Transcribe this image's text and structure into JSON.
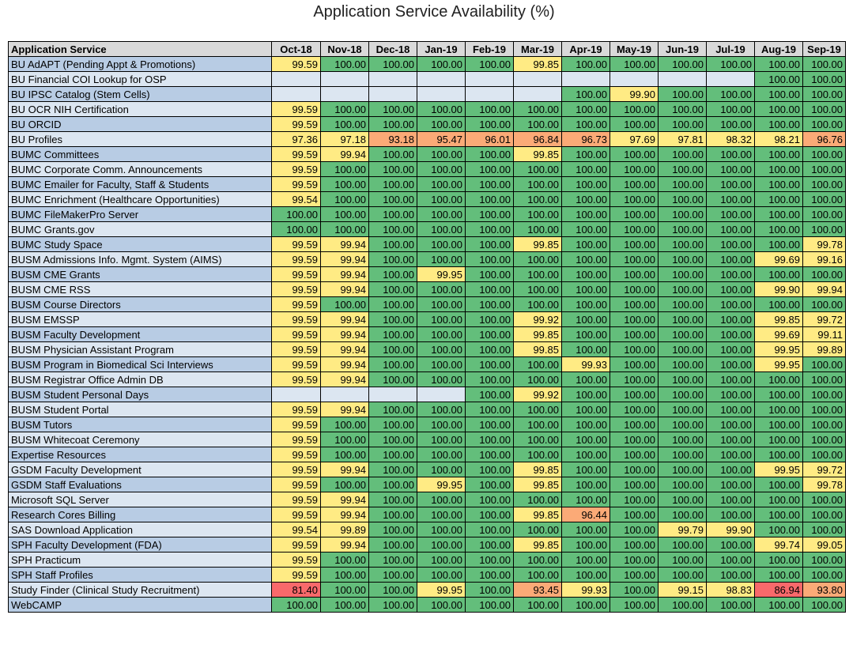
{
  "title": "Application Service Availability (%)",
  "colors": {
    "green": "#63be7b",
    "yellow": "#ffeb84",
    "orange": "#fbaa77",
    "red": "#f8696b",
    "empty": "#dce6f1",
    "name_alt": "#b8cce4",
    "name_plain": "#dce6f1",
    "header": "#d9d9d9"
  },
  "chart_data": {
    "type": "heatmap",
    "title": "Application Service Availability (%)",
    "row_header": "Application Service",
    "columns": [
      "Oct-18",
      "Nov-18",
      "Dec-18",
      "Jan-19",
      "Feb-19",
      "Mar-19",
      "Apr-19",
      "May-19",
      "Jun-19",
      "Jul-19",
      "Aug-19",
      "Sep-19"
    ],
    "rows": [
      {
        "name": "BU AdAPT (Pending Appt & Promotions)",
        "values": [
          "99.59",
          "100.00",
          "100.00",
          "100.00",
          "100.00",
          "99.85",
          "100.00",
          "100.00",
          "100.00",
          "100.00",
          "100.00",
          "100.00"
        ]
      },
      {
        "name": "BU Financial COI Lookup for OSP",
        "values": [
          "",
          "",
          "",
          "",
          "",
          "",
          "",
          "",
          "",
          "",
          "100.00",
          "100.00"
        ]
      },
      {
        "name": "BU IPSC Catalog (Stem Cells)",
        "values": [
          "",
          "",
          "",
          "",
          "",
          "",
          "100.00",
          "99.90",
          "100.00",
          "100.00",
          "100.00",
          "100.00"
        ]
      },
      {
        "name": "BU OCR NIH Certification",
        "values": [
          "99.59",
          "100.00",
          "100.00",
          "100.00",
          "100.00",
          "100.00",
          "100.00",
          "100.00",
          "100.00",
          "100.00",
          "100.00",
          "100.00"
        ]
      },
      {
        "name": "BU ORCID",
        "values": [
          "99.59",
          "100.00",
          "100.00",
          "100.00",
          "100.00",
          "100.00",
          "100.00",
          "100.00",
          "100.00",
          "100.00",
          "100.00",
          "100.00"
        ]
      },
      {
        "name": "BU Profiles",
        "values": [
          "97.36",
          "97.18",
          "93.18",
          "95.47",
          "96.01",
          "96.84",
          "96.73",
          "97.69",
          "97.81",
          "98.32",
          "98.21",
          "96.76"
        ]
      },
      {
        "name": "BUMC Committees",
        "values": [
          "99.59",
          "99.94",
          "100.00",
          "100.00",
          "100.00",
          "99.85",
          "100.00",
          "100.00",
          "100.00",
          "100.00",
          "100.00",
          "100.00"
        ]
      },
      {
        "name": "BUMC Corporate Comm. Announcements",
        "values": [
          "99.59",
          "100.00",
          "100.00",
          "100.00",
          "100.00",
          "100.00",
          "100.00",
          "100.00",
          "100.00",
          "100.00",
          "100.00",
          "100.00"
        ]
      },
      {
        "name": "BUMC Emailer for Faculty, Staff & Students",
        "values": [
          "99.59",
          "100.00",
          "100.00",
          "100.00",
          "100.00",
          "100.00",
          "100.00",
          "100.00",
          "100.00",
          "100.00",
          "100.00",
          "100.00"
        ]
      },
      {
        "name": "BUMC Enrichment (Healthcare Opportunities)",
        "values": [
          "99.54",
          "100.00",
          "100.00",
          "100.00",
          "100.00",
          "100.00",
          "100.00",
          "100.00",
          "100.00",
          "100.00",
          "100.00",
          "100.00"
        ]
      },
      {
        "name": "BUMC FileMakerPro Server",
        "values": [
          "100.00",
          "100.00",
          "100.00",
          "100.00",
          "100.00",
          "100.00",
          "100.00",
          "100.00",
          "100.00",
          "100.00",
          "100.00",
          "100.00"
        ]
      },
      {
        "name": "BUMC Grants.gov",
        "values": [
          "100.00",
          "100.00",
          "100.00",
          "100.00",
          "100.00",
          "100.00",
          "100.00",
          "100.00",
          "100.00",
          "100.00",
          "100.00",
          "100.00"
        ]
      },
      {
        "name": "BUMC Study Space",
        "values": [
          "99.59",
          "99.94",
          "100.00",
          "100.00",
          "100.00",
          "99.85",
          "100.00",
          "100.00",
          "100.00",
          "100.00",
          "100.00",
          "99.78"
        ]
      },
      {
        "name": "BUSM Admissions Info. Mgmt. System (AIMS)",
        "values": [
          "99.59",
          "99.94",
          "100.00",
          "100.00",
          "100.00",
          "100.00",
          "100.00",
          "100.00",
          "100.00",
          "100.00",
          "99.69",
          "99.16"
        ]
      },
      {
        "name": "BUSM CME Grants",
        "values": [
          "99.59",
          "99.94",
          "100.00",
          "99.95",
          "100.00",
          "100.00",
          "100.00",
          "100.00",
          "100.00",
          "100.00",
          "100.00",
          "100.00"
        ]
      },
      {
        "name": "BUSM CME RSS",
        "values": [
          "99.59",
          "99.94",
          "100.00",
          "100.00",
          "100.00",
          "100.00",
          "100.00",
          "100.00",
          "100.00",
          "100.00",
          "99.90",
          "99.94"
        ]
      },
      {
        "name": "BUSM Course Directors",
        "values": [
          "99.59",
          "100.00",
          "100.00",
          "100.00",
          "100.00",
          "100.00",
          "100.00",
          "100.00",
          "100.00",
          "100.00",
          "100.00",
          "100.00"
        ]
      },
      {
        "name": "BUSM EMSSP",
        "values": [
          "99.59",
          "99.94",
          "100.00",
          "100.00",
          "100.00",
          "99.92",
          "100.00",
          "100.00",
          "100.00",
          "100.00",
          "99.85",
          "99.72"
        ]
      },
      {
        "name": "BUSM Faculty Development",
        "values": [
          "99.59",
          "99.94",
          "100.00",
          "100.00",
          "100.00",
          "99.85",
          "100.00",
          "100.00",
          "100.00",
          "100.00",
          "99.69",
          "99.11"
        ]
      },
      {
        "name": "BUSM Physician Assistant Program",
        "values": [
          "99.59",
          "99.94",
          "100.00",
          "100.00",
          "100.00",
          "99.85",
          "100.00",
          "100.00",
          "100.00",
          "100.00",
          "99.95",
          "99.89"
        ]
      },
      {
        "name": "BUSM Program in Biomedical Sci Interviews",
        "values": [
          "99.59",
          "99.94",
          "100.00",
          "100.00",
          "100.00",
          "100.00",
          "99.93",
          "100.00",
          "100.00",
          "100.00",
          "99.95",
          "100.00"
        ]
      },
      {
        "name": "BUSM Registrar Office Admin DB",
        "values": [
          "99.59",
          "99.94",
          "100.00",
          "100.00",
          "100.00",
          "100.00",
          "100.00",
          "100.00",
          "100.00",
          "100.00",
          "100.00",
          "100.00"
        ]
      },
      {
        "name": "BUSM Student Personal Days",
        "values": [
          "",
          "",
          "",
          "",
          "100.00",
          "99.92",
          "100.00",
          "100.00",
          "100.00",
          "100.00",
          "100.00",
          "100.00"
        ]
      },
      {
        "name": "BUSM Student Portal",
        "values": [
          "99.59",
          "99.94",
          "100.00",
          "100.00",
          "100.00",
          "100.00",
          "100.00",
          "100.00",
          "100.00",
          "100.00",
          "100.00",
          "100.00"
        ]
      },
      {
        "name": "BUSM Tutors",
        "values": [
          "99.59",
          "100.00",
          "100.00",
          "100.00",
          "100.00",
          "100.00",
          "100.00",
          "100.00",
          "100.00",
          "100.00",
          "100.00",
          "100.00"
        ]
      },
      {
        "name": "BUSM Whitecoat Ceremony",
        "values": [
          "99.59",
          "100.00",
          "100.00",
          "100.00",
          "100.00",
          "100.00",
          "100.00",
          "100.00",
          "100.00",
          "100.00",
          "100.00",
          "100.00"
        ]
      },
      {
        "name": "Expertise Resources",
        "values": [
          "99.59",
          "100.00",
          "100.00",
          "100.00",
          "100.00",
          "100.00",
          "100.00",
          "100.00",
          "100.00",
          "100.00",
          "100.00",
          "100.00"
        ]
      },
      {
        "name": "GSDM Faculty Development",
        "values": [
          "99.59",
          "99.94",
          "100.00",
          "100.00",
          "100.00",
          "99.85",
          "100.00",
          "100.00",
          "100.00",
          "100.00",
          "99.95",
          "99.72"
        ]
      },
      {
        "name": "GSDM Staff Evaluations",
        "values": [
          "99.59",
          "100.00",
          "100.00",
          "99.95",
          "100.00",
          "99.85",
          "100.00",
          "100.00",
          "100.00",
          "100.00",
          "100.00",
          "99.78"
        ]
      },
      {
        "name": "Microsoft SQL Server",
        "values": [
          "99.59",
          "99.94",
          "100.00",
          "100.00",
          "100.00",
          "100.00",
          "100.00",
          "100.00",
          "100.00",
          "100.00",
          "100.00",
          "100.00"
        ]
      },
      {
        "name": "Research Cores Billing",
        "values": [
          "99.59",
          "99.94",
          "100.00",
          "100.00",
          "100.00",
          "99.85",
          "96.44",
          "100.00",
          "100.00",
          "100.00",
          "100.00",
          "100.00"
        ]
      },
      {
        "name": "SAS Download Application",
        "values": [
          "99.54",
          "99.89",
          "100.00",
          "100.00",
          "100.00",
          "100.00",
          "100.00",
          "100.00",
          "99.79",
          "99.90",
          "100.00",
          "100.00"
        ]
      },
      {
        "name": "SPH Faculty Development (FDA)",
        "values": [
          "99.59",
          "99.94",
          "100.00",
          "100.00",
          "100.00",
          "99.85",
          "100.00",
          "100.00",
          "100.00",
          "100.00",
          "99.74",
          "99.05"
        ]
      },
      {
        "name": "SPH Practicum",
        "values": [
          "99.59",
          "100.00",
          "100.00",
          "100.00",
          "100.00",
          "100.00",
          "100.00",
          "100.00",
          "100.00",
          "100.00",
          "100.00",
          "100.00"
        ]
      },
      {
        "name": "SPH Staff Profiles",
        "values": [
          "99.59",
          "100.00",
          "100.00",
          "100.00",
          "100.00",
          "100.00",
          "100.00",
          "100.00",
          "100.00",
          "100.00",
          "100.00",
          "100.00"
        ]
      },
      {
        "name": "Study Finder (Clinical Study Recruitment)",
        "values": [
          "81.40",
          "100.00",
          "100.00",
          "99.95",
          "100.00",
          "93.45",
          "99.93",
          "100.00",
          "99.15",
          "98.83",
          "86.94",
          "93.80"
        ]
      },
      {
        "name": "WebCAMP",
        "values": [
          "100.00",
          "100.00",
          "100.00",
          "100.00",
          "100.00",
          "100.00",
          "100.00",
          "100.00",
          "100.00",
          "100.00",
          "100.00",
          "100.00"
        ]
      }
    ]
  }
}
